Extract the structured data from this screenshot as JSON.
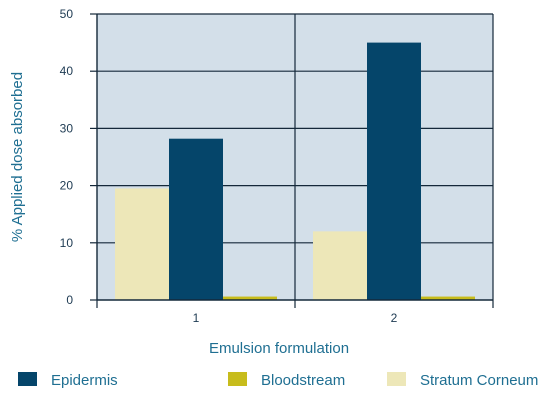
{
  "chart_data": {
    "type": "bar",
    "title": "",
    "xlabel": "Emulsion formulation",
    "ylabel": "% Applied dose absorbed",
    "ylim": [
      0,
      50
    ],
    "yticks": [
      0,
      10,
      20,
      30,
      40,
      50
    ],
    "categories": [
      "1",
      "2"
    ],
    "series": [
      {
        "name": "Stratum Corneum",
        "color": "#ede7b8",
        "values": [
          19.5,
          12
        ]
      },
      {
        "name": "Epidermis",
        "color": "#05456a",
        "values": [
          28.2,
          45
        ]
      },
      {
        "name": "Bloodstream",
        "color": "#c7bc1c",
        "values": [
          0.6,
          0.6
        ]
      }
    ],
    "legend": {
      "position": "bottom",
      "order": [
        "Epidermis",
        "Bloodstream",
        "Stratum Corneum"
      ]
    },
    "grid": true,
    "colors": {
      "plot_background": "#d3dfe9",
      "axis": "#14283a",
      "text": "#1f6f92"
    }
  }
}
